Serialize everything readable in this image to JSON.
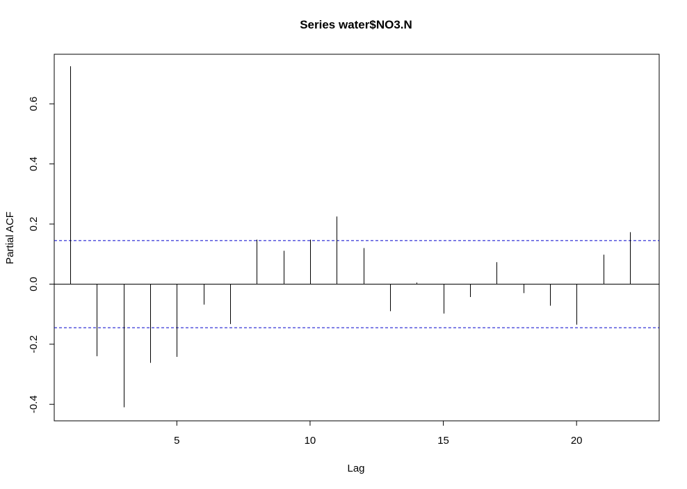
{
  "chart_data": {
    "type": "bar",
    "title": "Series  water$NO3.N",
    "xlabel": "Lag",
    "ylabel": "Partial ACF",
    "xlim": [
      0.4,
      23.1
    ],
    "ylim": [
      -0.455,
      0.765
    ],
    "x_ticks": [
      5,
      10,
      15,
      20
    ],
    "x_tick_labels": [
      "5",
      "10",
      "15",
      "20"
    ],
    "y_ticks": [
      -0.4,
      -0.2,
      0.0,
      0.2,
      0.4,
      0.6
    ],
    "y_tick_labels": [
      "-0.4",
      "-0.2",
      "0.0",
      "0.2",
      "0.4",
      "0.6"
    ],
    "lags": [
      1,
      2,
      3,
      4,
      5,
      6,
      7,
      8,
      9,
      10,
      11,
      12,
      13,
      14,
      15,
      16,
      17,
      18,
      19,
      20,
      21,
      22
    ],
    "values": [
      0.725,
      -0.24,
      -0.41,
      -0.262,
      -0.242,
      -0.068,
      -0.133,
      0.148,
      0.111,
      0.148,
      0.225,
      0.12,
      -0.09,
      0.005,
      -0.098,
      -0.043,
      0.073,
      -0.03,
      -0.072,
      -0.135,
      0.098,
      0.173
    ],
    "confidence_bound": 0.145,
    "colors": {
      "spike": "#000000",
      "confidence": "#0000cc",
      "zero_line": "#000000"
    }
  }
}
